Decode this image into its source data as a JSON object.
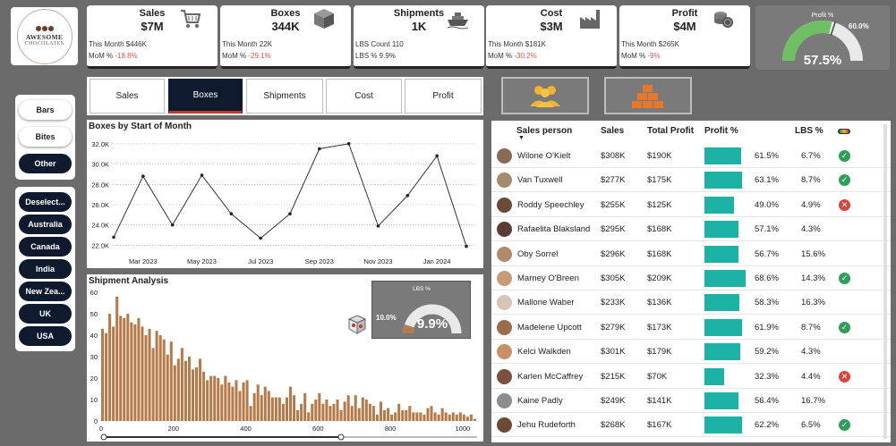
{
  "logo": {
    "line1": "AWESOME",
    "line2": "CHOCOLATES"
  },
  "kpis": [
    {
      "title": "Sales",
      "value": "$7M",
      "icon": "cart-icon",
      "line1": "This Month $446K",
      "line2_label": "MoM % ",
      "line2_value": "-18.8%"
    },
    {
      "title": "Boxes",
      "value": "344K",
      "icon": "box-icon",
      "line1": "This Month 22K",
      "line2_label": "MoM % ",
      "line2_value": "-29.1%"
    },
    {
      "title": "Shipments",
      "value": "1K",
      "icon": "ship-icon",
      "line1": "LBS Count 110",
      "line2_label": "LBS % 9.9%",
      "line2_value": ""
    },
    {
      "title": "Cost",
      "value": "$3M",
      "icon": "factory-icon",
      "line1": "This Month $181K",
      "line2_label": "MoM % ",
      "line2_value": "-30.2%"
    },
    {
      "title": "Profit",
      "value": "$4M",
      "icon": "coins-icon",
      "line1": "This Month $265K",
      "line2_label": "MoM % ",
      "line2_value": "-9%"
    }
  ],
  "profit_gauge": {
    "title": "Profit %",
    "value": "57.5%",
    "target": "60.0%",
    "fraction": 0.575,
    "target_fraction": 0.6
  },
  "product_filters": [
    {
      "label": "Bars",
      "selected": false
    },
    {
      "label": "Bites",
      "selected": false
    },
    {
      "label": "Other",
      "selected": true
    }
  ],
  "country_filters": [
    {
      "label": "Deselect..."
    },
    {
      "label": "Australia"
    },
    {
      "label": "Canada"
    },
    {
      "label": "India"
    },
    {
      "label": "New Zea..."
    },
    {
      "label": "UK"
    },
    {
      "label": "USA"
    }
  ],
  "tabs": [
    {
      "label": "Sales",
      "active": false
    },
    {
      "label": "Boxes",
      "active": true
    },
    {
      "label": "Shipments",
      "active": false
    },
    {
      "label": "Cost",
      "active": false
    },
    {
      "label": "Profit",
      "active": false
    }
  ],
  "view_buttons": [
    {
      "icon": "people-icon"
    },
    {
      "icon": "boxes-stack-icon"
    }
  ],
  "colors": {
    "accent_teal": "#1cb3a6",
    "bar_brown": "#b57a4a",
    "dark": "#101a2e",
    "gauge_green": "#6fbf64"
  },
  "line_chart": {
    "title": "Boxes by Start of Month",
    "chart_data": {
      "type": "line",
      "ylim": [
        21600,
        32600
      ],
      "yticks": [
        "32.0K",
        "30.0K",
        "28.0K",
        "26.0K",
        "24.0K",
        "22.0K"
      ],
      "ytick_values": [
        32000,
        30000,
        28000,
        26000,
        24000,
        22000
      ],
      "xticks": [
        "Mar 2023",
        "May 2023",
        "Jul 2023",
        "Sep 2023",
        "Nov 2023",
        "Jan 2024"
      ],
      "xtick_index": [
        1,
        3,
        5,
        7,
        9,
        11
      ],
      "values": [
        22800,
        28800,
        24000,
        28900,
        25100,
        22700,
        25100,
        31500,
        32000,
        23900,
        26900,
        30800,
        21900
      ]
    }
  },
  "histogram": {
    "title": "Shipment Analysis",
    "chart_data": {
      "type": "bar",
      "ylim": [
        0,
        60
      ],
      "yticks": [
        "60",
        "50",
        "40",
        "30",
        "20",
        "10",
        "0"
      ],
      "ytick_values": [
        60,
        50,
        40,
        30,
        20,
        10,
        0
      ],
      "xticks": [
        "0",
        "200",
        "400",
        "600",
        "800",
        "1000"
      ],
      "xtick_values": [
        0,
        200,
        400,
        600,
        800,
        1000
      ],
      "xlim": [
        -5,
        1040
      ],
      "bin_width": 10,
      "values": [
        43,
        41,
        50,
        44,
        58,
        49,
        48,
        50,
        46,
        45,
        48,
        44,
        40,
        43,
        34,
        42,
        40,
        38,
        31,
        37,
        26,
        29,
        34,
        28,
        30,
        24,
        25,
        29,
        23,
        19,
        21,
        21,
        20,
        17,
        21,
        18,
        16,
        19,
        14,
        18,
        19,
        7,
        13,
        17,
        12,
        16,
        14,
        11,
        11,
        11,
        8,
        11,
        16,
        12,
        5,
        8,
        13,
        4,
        8,
        10,
        13,
        8,
        10,
        7,
        8,
        10,
        5,
        9,
        12,
        7,
        12,
        6,
        11,
        10,
        8,
        7,
        3,
        9,
        5,
        6,
        3,
        4,
        8,
        5,
        5,
        7,
        4,
        4,
        4,
        3,
        6,
        7,
        4,
        3,
        6,
        4,
        3,
        4,
        3,
        4,
        3,
        2,
        3,
        1
      ]
    },
    "lbs_gauge": {
      "title": "LBS %",
      "value": "9.9%",
      "label": "10.0%",
      "fraction": 0.099
    }
  },
  "table": {
    "headers": [
      "Sales person",
      "Sales",
      "Total Profit",
      "Profit %",
      "LBS %"
    ],
    "rows": [
      {
        "name": "Wilone O'Kielt",
        "sales": "$308K",
        "profit": "$190K",
        "profit_pct": "61.5%",
        "pct": 61.5,
        "lbs": "6.7%",
        "status": "ok",
        "avatar": "#8a6a55"
      },
      {
        "name": "Van Tuxwell",
        "sales": "$277K",
        "profit": "$175K",
        "profit_pct": "63.1%",
        "pct": 63.1,
        "lbs": "8.7%",
        "status": "ok",
        "avatar": "#a48b6e"
      },
      {
        "name": "Roddy Speechley",
        "sales": "$255K",
        "profit": "$125K",
        "profit_pct": "49.0%",
        "pct": 49.0,
        "lbs": "4.9%",
        "status": "bad",
        "avatar": "#6b4a3a"
      },
      {
        "name": "Rafaelita Blaksland",
        "sales": "$295K",
        "profit": "$168K",
        "profit_pct": "57.1%",
        "pct": 57.1,
        "lbs": "4.3%",
        "status": "",
        "avatar": "#5a3e36"
      },
      {
        "name": "Oby Sorrel",
        "sales": "$296K",
        "profit": "$168K",
        "profit_pct": "56.7%",
        "pct": 56.7,
        "lbs": "15.6%",
        "status": "",
        "avatar": "#b08a6a"
      },
      {
        "name": "Marney O'Breen",
        "sales": "$305K",
        "profit": "$209K",
        "profit_pct": "68.6%",
        "pct": 68.6,
        "lbs": "14.3%",
        "status": "ok",
        "avatar": "#c79a7a"
      },
      {
        "name": "Mallorie Waber",
        "sales": "$233K",
        "profit": "$136K",
        "profit_pct": "58.3%",
        "pct": 58.3,
        "lbs": "16.3%",
        "status": "",
        "avatar": "#d8c4b4"
      },
      {
        "name": "Madelene Upcott",
        "sales": "$279K",
        "profit": "$173K",
        "profit_pct": "61.9%",
        "pct": 61.9,
        "lbs": "8.7%",
        "status": "ok",
        "avatar": "#9b6b4b"
      },
      {
        "name": "Kelci Walkden",
        "sales": "$301K",
        "profit": "$179K",
        "profit_pct": "59.2%",
        "pct": 59.2,
        "lbs": "4.3%",
        "status": "",
        "avatar": "#c98f6a"
      },
      {
        "name": "Karlen McCaffrey",
        "sales": "$215K",
        "profit": "$70K",
        "profit_pct": "32.3%",
        "pct": 32.3,
        "lbs": "4.4%",
        "status": "bad",
        "avatar": "#7a5040"
      },
      {
        "name": "Kaine Padly",
        "sales": "$249K",
        "profit": "$141K",
        "profit_pct": "56.4%",
        "pct": 56.4,
        "lbs": "16.7%",
        "status": "",
        "avatar": "#8c8c8c"
      },
      {
        "name": "Jehu Rudeforth",
        "sales": "$268K",
        "profit": "$167K",
        "profit_pct": "62.2%",
        "pct": 62.2,
        "lbs": "6.5%",
        "status": "ok",
        "avatar": "#6e4a34"
      }
    ]
  }
}
